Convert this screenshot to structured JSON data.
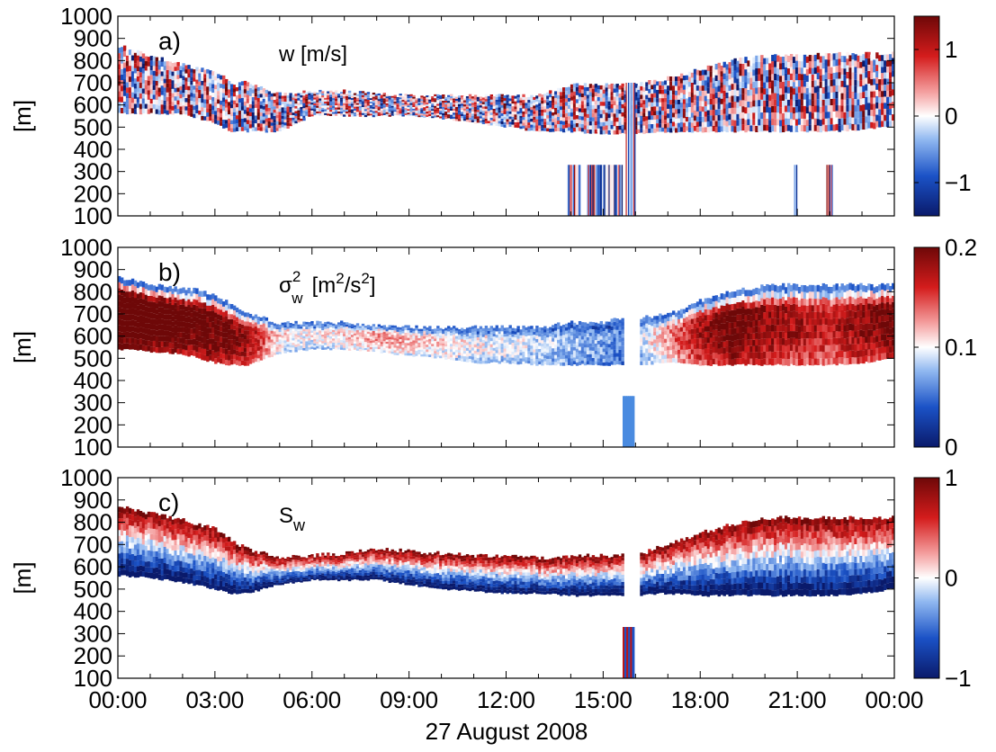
{
  "chart_data": [
    {
      "type": "heatmap",
      "panel_label": "a)",
      "title": "w [m/s]",
      "ylabel": "[m]",
      "ylim": [
        100,
        1000
      ],
      "yticks": [
        "100",
        "200",
        "300",
        "400",
        "500",
        "600",
        "700",
        "800",
        "900",
        "1000"
      ],
      "xlim": [
        0,
        24
      ],
      "xtick_count": 9,
      "colorbar": {
        "cmap": "diverging-blue-white-red",
        "range": [
          -1.5,
          1.5
        ],
        "ticks": [
          -1,
          0,
          1
        ],
        "tick_labels": [
          "−1",
          "0",
          "1"
        ]
      },
      "envelope_hours": [
        0,
        1,
        2,
        3,
        3.5,
        4,
        5,
        6,
        7,
        8,
        9,
        10,
        11,
        12,
        13,
        14,
        15,
        15.5,
        16,
        17,
        18,
        19,
        20,
        21,
        22,
        23,
        24
      ],
      "envelope_top_m": [
        870,
        820,
        780,
        750,
        700,
        700,
        650,
        660,
        660,
        650,
        640,
        640,
        640,
        640,
        640,
        690,
        690,
        690,
        690,
        720,
        760,
        800,
        820,
        820,
        830,
        830,
        830
      ],
      "envelope_bottom_m": [
        560,
        560,
        560,
        520,
        480,
        480,
        480,
        550,
        550,
        550,
        550,
        540,
        520,
        500,
        480,
        480,
        470,
        470,
        470,
        480,
        480,
        480,
        480,
        480,
        480,
        490,
        500
      ]
    },
    {
      "type": "heatmap",
      "panel_label": "b)",
      "title": "σ²w [m²/s²]",
      "ylabel": "[m]",
      "ylim": [
        100,
        1000
      ],
      "yticks": [
        "100",
        "200",
        "300",
        "400",
        "500",
        "600",
        "700",
        "800",
        "900",
        "1000"
      ],
      "xlim": [
        0,
        24
      ],
      "xtick_count": 9,
      "colorbar": {
        "cmap": "blue-white-red",
        "range": [
          0,
          0.2
        ],
        "ticks": [
          0,
          0.1,
          0.2
        ],
        "tick_labels": [
          "0",
          "0.1",
          "0.2"
        ]
      },
      "envelope_hours": [
        0,
        1,
        2,
        3,
        3.5,
        4,
        5,
        6,
        7,
        8,
        9,
        10,
        11,
        12,
        13,
        14,
        15,
        15.5,
        16,
        17,
        18,
        19,
        20,
        21,
        22,
        23,
        24
      ],
      "envelope_top_m": [
        870,
        830,
        820,
        790,
        740,
        700,
        660,
        660,
        660,
        650,
        640,
        640,
        640,
        640,
        640,
        660,
        660,
        680,
        680,
        700,
        760,
        800,
        830,
        830,
        830,
        830,
        830
      ],
      "envelope_bottom_m": [
        540,
        530,
        520,
        480,
        470,
        470,
        520,
        540,
        540,
        530,
        510,
        500,
        480,
        480,
        470,
        470,
        470,
        470,
        470,
        480,
        470,
        470,
        470,
        470,
        470,
        480,
        500
      ],
      "profile_mean": [
        0.24,
        0.22,
        0.21,
        0.2,
        0.19,
        0.18,
        0.1,
        0.09,
        0.1,
        0.12,
        0.11,
        0.1,
        0.09,
        0.09,
        0.08,
        0.07,
        0.06,
        0.05,
        0.07,
        0.12,
        0.17,
        0.2,
        0.18,
        0.17,
        0.16,
        0.18,
        0.2
      ]
    },
    {
      "type": "heatmap",
      "panel_label": "c)",
      "title": "Sw",
      "ylabel": "[m]",
      "ylim": [
        100,
        1000
      ],
      "yticks": [
        "100",
        "200",
        "300",
        "400",
        "500",
        "600",
        "700",
        "800",
        "900",
        "1000"
      ],
      "xlim": [
        0,
        24
      ],
      "xtick_count": 9,
      "colorbar": {
        "cmap": "diverging-blue-white-red",
        "range": [
          -1,
          1
        ],
        "ticks": [
          -1,
          0,
          1
        ],
        "tick_labels": [
          "−1",
          "0",
          "1"
        ]
      },
      "envelope_hours": [
        0,
        1,
        2,
        3,
        3.5,
        4,
        5,
        6,
        7,
        8,
        9,
        10,
        11,
        12,
        13,
        14,
        15,
        15.5,
        16,
        17,
        18,
        19,
        20,
        21,
        22,
        23,
        24
      ],
      "envelope_top_m": [
        870,
        840,
        810,
        770,
        720,
        680,
        640,
        650,
        660,
        680,
        670,
        660,
        650,
        650,
        640,
        650,
        650,
        650,
        650,
        700,
        750,
        790,
        820,
        820,
        820,
        820,
        820
      ],
      "envelope_bottom_m": [
        560,
        550,
        530,
        500,
        480,
        480,
        520,
        540,
        540,
        540,
        520,
        500,
        490,
        480,
        480,
        470,
        470,
        470,
        470,
        480,
        470,
        470,
        470,
        470,
        470,
        480,
        500
      ]
    }
  ],
  "x_axis": {
    "tick_labels": [
      "00:00",
      "03:00",
      "06:00",
      "09:00",
      "12:00",
      "15:00",
      "18:00",
      "21:00",
      "00:00"
    ],
    "date_label": "27 August 2008"
  },
  "colors": {
    "deep_blue": "#0c2a80",
    "blue": "#2c6fd8",
    "white": "#ffffff",
    "red": "#d62020",
    "deep_red": "#7a0b0b",
    "frame": "#000000"
  }
}
